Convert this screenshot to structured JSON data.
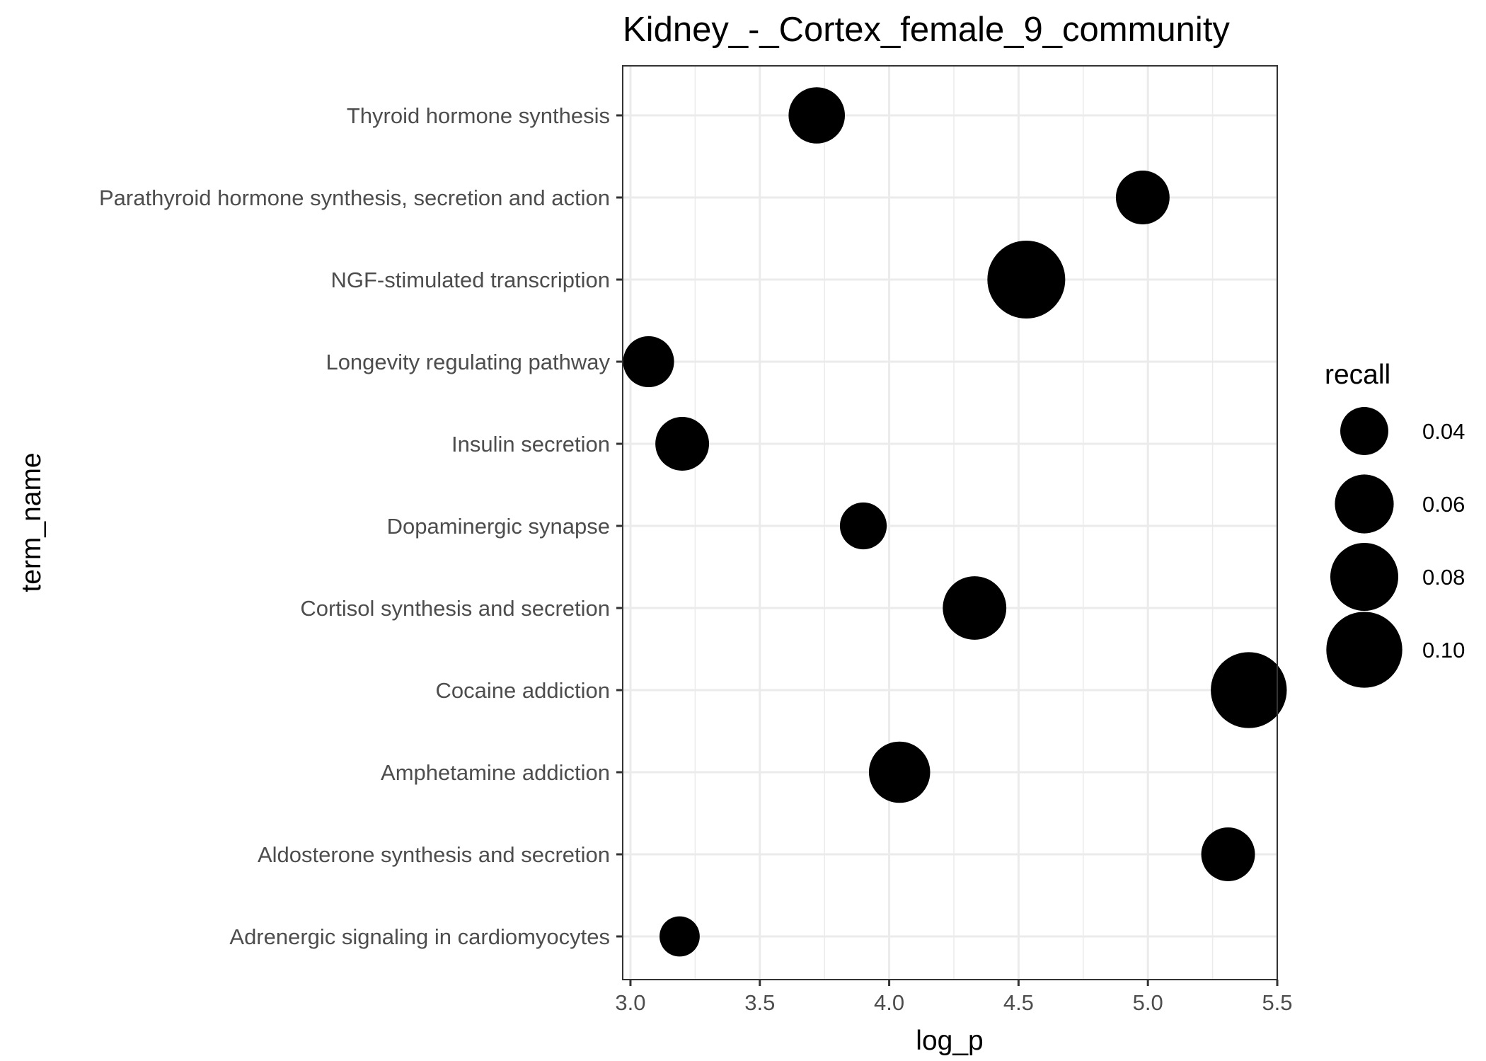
{
  "chart_data": {
    "type": "scatter",
    "title": "Kidney_-_Cortex_female_9_community",
    "xlabel": "log_p",
    "ylabel": "term_name",
    "xlim": [
      2.97,
      5.5
    ],
    "x_ticks": [
      "3.0",
      "3.5",
      "4.0",
      "4.5",
      "5.0",
      "5.5"
    ],
    "grid": true,
    "legend": {
      "title": "recall",
      "position": "right",
      "labels": [
        "0.04",
        "0.06",
        "0.08",
        "0.10"
      ],
      "values": [
        0.04,
        0.06,
        0.08,
        0.1
      ]
    },
    "categories": [
      "Thyroid hormone synthesis",
      "Parathyroid hormone synthesis, secretion and action",
      "NGF-stimulated transcription",
      "Longevity regulating pathway",
      "Insulin secretion",
      "Dopaminergic synapse",
      "Cortisol synthesis and secretion",
      "Cocaine addiction",
      "Amphetamine addiction",
      "Aldosterone synthesis and secretion",
      "Adrenergic signaling in cardiomyocytes"
    ],
    "points": [
      {
        "term_name": "Thyroid hormone synthesis",
        "log_p": 3.72,
        "recall": 0.055
      },
      {
        "term_name": "Parathyroid hormone synthesis, secretion and action",
        "log_p": 4.98,
        "recall": 0.05
      },
      {
        "term_name": "NGF-stimulated transcription",
        "log_p": 4.53,
        "recall": 0.105
      },
      {
        "term_name": "Longevity regulating pathway",
        "log_p": 3.07,
        "recall": 0.045
      },
      {
        "term_name": "Insulin secretion",
        "log_p": 3.2,
        "recall": 0.05
      },
      {
        "term_name": "Dopaminergic synapse",
        "log_p": 3.9,
        "recall": 0.038
      },
      {
        "term_name": "Cortisol synthesis and secretion",
        "log_p": 4.33,
        "recall": 0.07
      },
      {
        "term_name": "Cocaine addiction",
        "log_p": 5.39,
        "recall": 0.1
      },
      {
        "term_name": "Amphetamine addiction",
        "log_p": 4.04,
        "recall": 0.065
      },
      {
        "term_name": "Aldosterone synthesis and secretion",
        "log_p": 5.31,
        "recall": 0.05
      },
      {
        "term_name": "Adrenergic signaling in cardiomyocytes",
        "log_p": 3.19,
        "recall": 0.028
      }
    ],
    "colors": {
      "point": "#000000",
      "grid": "#ebebeb",
      "panel_border": "#333333",
      "tick_text": "#4d4d4d"
    }
  }
}
